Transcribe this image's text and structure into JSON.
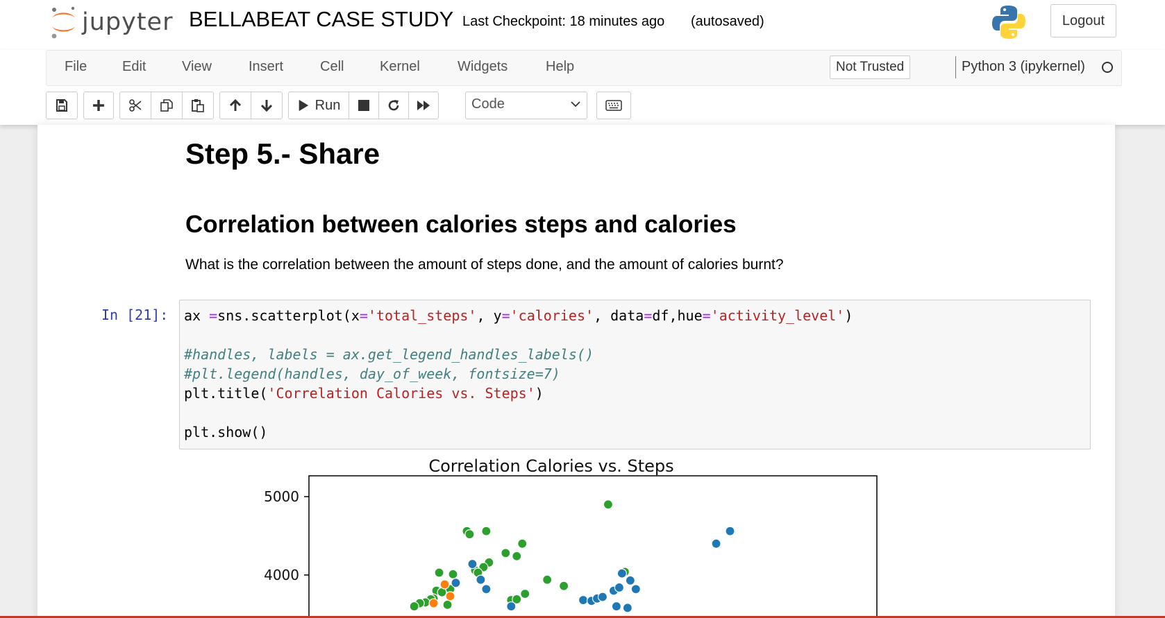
{
  "header": {
    "logo_text": "jupyter",
    "notebook_title": "BELLABEAT CASE STUDY",
    "checkpoint": "Last Checkpoint: 18 minutes ago",
    "autosave": "(autosaved)",
    "logout_label": "Logout"
  },
  "menubar": {
    "items": [
      "File",
      "Edit",
      "View",
      "Insert",
      "Cell",
      "Kernel",
      "Widgets",
      "Help"
    ],
    "trusted_label": "Not Trusted",
    "kernel_name": "Python 3 (ipykernel)"
  },
  "toolbar": {
    "run_label": "Run",
    "cell_type": "Code",
    "icons": [
      "save-icon",
      "plus-icon",
      "scissors-icon",
      "copy-icon",
      "paste-icon",
      "arrow-up-icon",
      "arrow-down-icon",
      "play-icon",
      "stop-icon",
      "restart-icon",
      "fast-forward-icon",
      "keyboard-icon"
    ]
  },
  "notebook": {
    "heading1": "Step 5.- Share",
    "heading2": "Correlation between calories steps and calories",
    "question": "What is the correlation between the amount of steps done, and the amount of calories burnt?",
    "prompt": "In [21]:",
    "code": {
      "line1_a": "ax ",
      "line1_b": "=",
      "line1_c": "sns.scatterplot(x",
      "line1_d": "=",
      "line1_e": "'total_steps'",
      "line1_f": ", y",
      "line1_g": "=",
      "line1_h": "'calories'",
      "line1_i": ", data",
      "line1_j": "=",
      "line1_k": "df,hue",
      "line1_l": "=",
      "line1_m": "'activity_level'",
      "line1_n": ")",
      "line3": "#handles, labels = ax.get_legend_handles_labels()",
      "line4": "#plt.legend(handles, day_of_week, fontsize=7)",
      "line5_a": "plt.title(",
      "line5_b": "'Correlation Calories vs. Steps'",
      "line5_c": ")",
      "line7": "plt.show()"
    }
  },
  "colors": {
    "series_blue": "#1f77b4",
    "series_green": "#2ca02c",
    "series_orange": "#ff7f0e"
  },
  "chart_data": {
    "type": "scatter",
    "title": "Correlation Calories vs. Steps",
    "xlabel": "",
    "ylabel": "",
    "y_ticks": [
      4000,
      5000
    ],
    "ylim_visible": [
      3500,
      5150
    ],
    "grid": false,
    "series": [
      {
        "color": "#2ca02c",
        "points": [
          [
            10800,
            4900
          ],
          [
            5700,
            4560
          ],
          [
            5800,
            4520
          ],
          [
            6400,
            4560
          ],
          [
            7100,
            4280
          ],
          [
            7500,
            4240
          ],
          [
            7700,
            4400
          ],
          [
            6500,
            4160
          ],
          [
            6300,
            4100
          ],
          [
            6000,
            4060
          ],
          [
            6100,
            4030
          ],
          [
            4700,
            4030
          ],
          [
            4900,
            3800
          ],
          [
            5200,
            4010
          ],
          [
            4600,
            3800
          ],
          [
            4500,
            3700
          ],
          [
            4800,
            3780
          ],
          [
            5100,
            3820
          ],
          [
            8600,
            3940
          ],
          [
            9200,
            3860
          ],
          [
            7800,
            3760
          ],
          [
            11400,
            4040
          ],
          [
            7300,
            3680
          ],
          [
            7500,
            3690
          ],
          [
            4400,
            3690
          ],
          [
            4200,
            3650
          ],
          [
            4000,
            3640
          ],
          [
            3800,
            3600
          ],
          [
            5000,
            3620
          ]
        ]
      },
      {
        "color": "#1f77b4",
        "points": [
          [
            14700,
            4400
          ],
          [
            15200,
            4560
          ],
          [
            5900,
            4140
          ],
          [
            6200,
            3940
          ],
          [
            6400,
            3820
          ],
          [
            5300,
            3900
          ],
          [
            9900,
            3680
          ],
          [
            10200,
            3670
          ],
          [
            10400,
            3700
          ],
          [
            10600,
            3720
          ],
          [
            11000,
            3800
          ],
          [
            11200,
            3840
          ],
          [
            11300,
            4020
          ],
          [
            11600,
            3930
          ],
          [
            11800,
            3820
          ],
          [
            11100,
            3600
          ],
          [
            11500,
            3580
          ],
          [
            7300,
            3600
          ]
        ]
      },
      {
        "color": "#ff7f0e",
        "points": [
          [
            4900,
            3880
          ],
          [
            5100,
            3730
          ],
          [
            4500,
            3640
          ]
        ]
      }
    ]
  }
}
